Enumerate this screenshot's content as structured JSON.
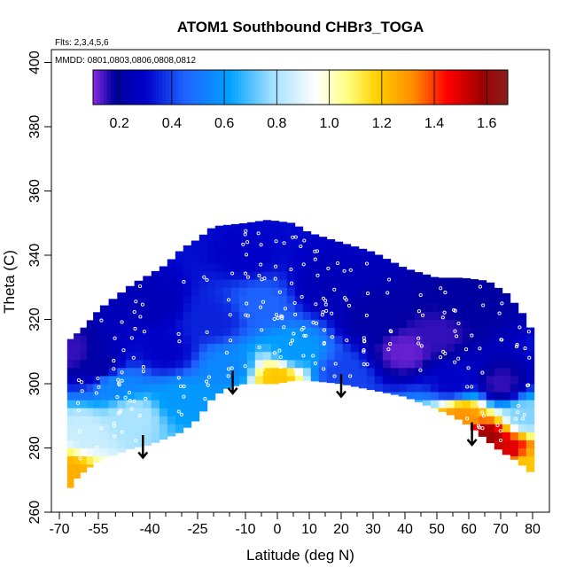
{
  "chart_data": {
    "type": "heatmap",
    "title": "ATOM1 Southbound CHBr3_TOGA",
    "subtitle_flights": "Flts: 2,3,4,5,6",
    "subtitle_dates": "MMDD: 0801,0803,0806,0808,0812",
    "xlabel": "Latitude (deg N)",
    "ylabel": "Theta (C)",
    "xlim": [
      -70,
      85
    ],
    "ylim": [
      260,
      403
    ],
    "x_ticks": [
      -70,
      -55,
      -40,
      -25,
      -10,
      0,
      10,
      20,
      30,
      40,
      50,
      60,
      70,
      80
    ],
    "x_tick_labels": [
      "-70",
      "-55",
      "-40",
      "-25",
      "-10",
      "0",
      "10",
      "20",
      "30",
      "40",
      "50",
      "60",
      "70",
      "80"
    ],
    "x_minor_ticks": [
      -65,
      -60,
      -50,
      -45,
      -35,
      -30,
      -20,
      -15,
      -5,
      5,
      15,
      25,
      35,
      45,
      55,
      65,
      75
    ],
    "y_ticks": [
      260,
      280,
      300,
      320,
      340,
      360,
      380,
      400
    ],
    "y_tick_labels": [
      "260",
      "280",
      "300",
      "320",
      "340",
      "360",
      "380",
      "400"
    ],
    "colorbar": {
      "range": [
        0.1,
        1.68
      ],
      "ticks": [
        0.2,
        0.4,
        0.6,
        0.8,
        1.0,
        1.2,
        1.4,
        1.6
      ],
      "tick_labels": [
        "0.2",
        "0.4",
        "0.6",
        "0.8",
        "1.0",
        "1.2",
        "1.4",
        "1.6"
      ],
      "colors": [
        "#8a2be2",
        "#0000a0",
        "#0000c8",
        "#1e64ff",
        "#00a0ff",
        "#a0e0ff",
        "#ffffff",
        "#ffff80",
        "#ffd000",
        "#ff8c00",
        "#ff0000",
        "#a00000",
        "#8b2020"
      ]
    },
    "arrows_lat": [
      -42,
      -14,
      20,
      61
    ],
    "domain_top_theta": [
      [
        -67,
        313
      ],
      [
        -60,
        318
      ],
      [
        -55,
        323
      ],
      [
        -50,
        327
      ],
      [
        -45,
        331
      ],
      [
        -40,
        334
      ],
      [
        -35,
        337
      ],
      [
        -30,
        342
      ],
      [
        -25,
        345
      ],
      [
        -20,
        349
      ],
      [
        -10,
        350
      ],
      [
        -3,
        351
      ],
      [
        5,
        350
      ],
      [
        10,
        347
      ],
      [
        20,
        344
      ],
      [
        30,
        341
      ],
      [
        40,
        336
      ],
      [
        50,
        333
      ],
      [
        58,
        333
      ],
      [
        66,
        332
      ],
      [
        72,
        328
      ],
      [
        76,
        323
      ],
      [
        79,
        319
      ],
      [
        80,
        313
      ]
    ],
    "domain_bottom_theta": [
      [
        -67,
        266
      ],
      [
        -64,
        270
      ],
      [
        -60,
        273
      ],
      [
        -55,
        276
      ],
      [
        -50,
        278
      ],
      [
        -45,
        280
      ],
      [
        -40,
        281
      ],
      [
        -35,
        283
      ],
      [
        -30,
        285
      ],
      [
        -25,
        289
      ],
      [
        -20,
        296
      ],
      [
        -15,
        299
      ],
      [
        -10,
        300
      ],
      [
        -5,
        300
      ],
      [
        0,
        300
      ],
      [
        5,
        301
      ],
      [
        10,
        301
      ],
      [
        20,
        300
      ],
      [
        30,
        298
      ],
      [
        40,
        296
      ],
      [
        50,
        292
      ],
      [
        55,
        290
      ],
      [
        60,
        287
      ],
      [
        65,
        283
      ],
      [
        70,
        279
      ],
      [
        75,
        276
      ],
      [
        80,
        272
      ]
    ],
    "field_samples": [
      {
        "lat": -65,
        "theta": 310,
        "value": 0.15
      },
      {
        "lat": -55,
        "theta": 305,
        "value": 0.2
      },
      {
        "lat": -50,
        "theta": 300,
        "value": 0.55
      },
      {
        "lat": -60,
        "theta": 285,
        "value": 0.85
      },
      {
        "lat": -66,
        "theta": 272,
        "value": 1.25
      },
      {
        "lat": -45,
        "theta": 290,
        "value": 0.8
      },
      {
        "lat": -35,
        "theta": 310,
        "value": 0.3
      },
      {
        "lat": -30,
        "theta": 295,
        "value": 0.6
      },
      {
        "lat": -20,
        "theta": 320,
        "value": 0.35
      },
      {
        "lat": -15,
        "theta": 305,
        "value": 0.55
      },
      {
        "lat": -5,
        "theta": 325,
        "value": 0.45
      },
      {
        "lat": 0,
        "theta": 302,
        "value": 1.2
      },
      {
        "lat": 5,
        "theta": 310,
        "value": 0.6
      },
      {
        "lat": 15,
        "theta": 330,
        "value": 0.25
      },
      {
        "lat": 20,
        "theta": 303,
        "value": 0.4
      },
      {
        "lat": 30,
        "theta": 320,
        "value": 0.2
      },
      {
        "lat": 40,
        "theta": 310,
        "value": 0.12
      },
      {
        "lat": 50,
        "theta": 315,
        "value": 0.15
      },
      {
        "lat": 55,
        "theta": 300,
        "value": 0.3
      },
      {
        "lat": 58,
        "theta": 290,
        "value": 1.3
      },
      {
        "lat": 65,
        "theta": 283,
        "value": 1.6
      },
      {
        "lat": 72,
        "theta": 279,
        "value": 1.5
      },
      {
        "lat": 78,
        "theta": 275,
        "value": 1.2
      },
      {
        "lat": 70,
        "theta": 300,
        "value": 0.15
      },
      {
        "lat": 78,
        "theta": 290,
        "value": 0.75
      },
      {
        "lat": -10,
        "theta": 340,
        "value": 0.3
      },
      {
        "lat": 60,
        "theta": 325,
        "value": 0.18
      },
      {
        "lat": -40,
        "theta": 325,
        "value": 0.25
      }
    ]
  }
}
